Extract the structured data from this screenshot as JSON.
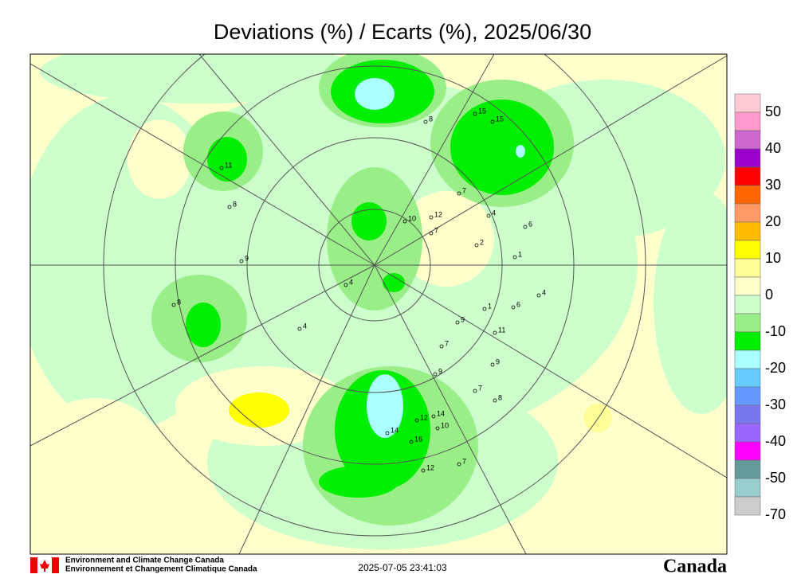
{
  "title": "Deviations (%) / Ecarts (%), 2025/06/30",
  "colorbar": {
    "colors": [
      "#ffccd5",
      "#ff99cc",
      "#cc66cc",
      "#9900cc",
      "#ff0000",
      "#ff6600",
      "#ff9966",
      "#ffbb00",
      "#ffff00",
      "#ffff99",
      "#ffffcc",
      "#ccffcc",
      "#99ee88",
      "#00ee00",
      "#aaffff",
      "#66ccff",
      "#6699ff",
      "#7777ee",
      "#9966ff",
      "#ff00ff",
      "#669999",
      "#99cccc",
      "#cccccc"
    ],
    "labels": [
      50,
      40,
      30,
      20,
      10,
      0,
      -10,
      -20,
      -30,
      -40,
      -50,
      -70
    ]
  },
  "stations": [
    "15",
    "15",
    "8",
    "11",
    "8",
    "7",
    "10",
    "12",
    "7",
    "4",
    "6",
    "2",
    "1",
    "9",
    "4",
    "8",
    "4",
    "4",
    "6",
    "1",
    "9",
    "11",
    "7",
    "9",
    "9",
    "7",
    "8",
    "14",
    "12",
    "14",
    "10",
    "16",
    "7",
    "12"
  ],
  "footer": {
    "agency_en": "Environment and Climate Change Canada",
    "agency_fr": "Environnement et Changement Climatique Canada",
    "timestamp": "2025-07-05 23:41:03",
    "wordmark": "Canada"
  }
}
